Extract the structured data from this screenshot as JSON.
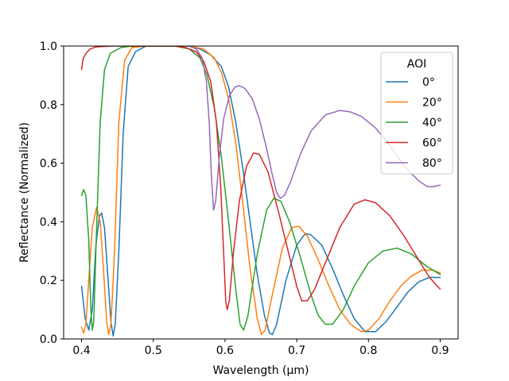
{
  "chart_data": {
    "type": "line",
    "title": "",
    "xlabel": "Wavelength (μm)",
    "ylabel": "Reflectance (Normalized)",
    "xlim": [
      0.375,
      0.925
    ],
    "ylim": [
      0.0,
      1.0
    ],
    "x_ticks": [
      "0.4",
      "0.5",
      "0.6",
      "0.7",
      "0.8",
      "0.9"
    ],
    "x_tick_values": [
      0.4,
      0.5,
      0.6,
      0.7,
      0.8,
      0.9
    ],
    "y_ticks": [
      "0.0",
      "0.2",
      "0.4",
      "0.6",
      "0.8",
      "1.0"
    ],
    "y_tick_values": [
      0.0,
      0.2,
      0.4,
      0.6,
      0.8,
      1.0
    ],
    "grid": false,
    "legend": {
      "title": "AOI",
      "placement": "top-right"
    },
    "series": [
      {
        "name": "0°",
        "color": "#1f77b4",
        "points": [
          [
            0.4,
            0.18
          ],
          [
            0.405,
            0.07
          ],
          [
            0.41,
            0.03
          ],
          [
            0.415,
            0.1
          ],
          [
            0.42,
            0.32
          ],
          [
            0.425,
            0.42
          ],
          [
            0.428,
            0.43
          ],
          [
            0.432,
            0.38
          ],
          [
            0.437,
            0.2
          ],
          [
            0.441,
            0.06
          ],
          [
            0.444,
            0.01
          ],
          [
            0.447,
            0.05
          ],
          [
            0.452,
            0.3
          ],
          [
            0.458,
            0.7
          ],
          [
            0.465,
            0.93
          ],
          [
            0.475,
            0.98
          ],
          [
            0.49,
            1.0
          ],
          [
            0.52,
            1.0
          ],
          [
            0.55,
            1.0
          ],
          [
            0.565,
            0.99
          ],
          [
            0.58,
            0.97
          ],
          [
            0.595,
            0.93
          ],
          [
            0.605,
            0.86
          ],
          [
            0.615,
            0.74
          ],
          [
            0.625,
            0.58
          ],
          [
            0.635,
            0.4
          ],
          [
            0.645,
            0.22
          ],
          [
            0.655,
            0.08
          ],
          [
            0.662,
            0.02
          ],
          [
            0.666,
            0.015
          ],
          [
            0.672,
            0.05
          ],
          [
            0.685,
            0.2
          ],
          [
            0.7,
            0.32
          ],
          [
            0.712,
            0.36
          ],
          [
            0.72,
            0.355
          ],
          [
            0.735,
            0.32
          ],
          [
            0.75,
            0.24
          ],
          [
            0.765,
            0.15
          ],
          [
            0.78,
            0.07
          ],
          [
            0.795,
            0.025
          ],
          [
            0.81,
            0.025
          ],
          [
            0.825,
            0.06
          ],
          [
            0.84,
            0.11
          ],
          [
            0.855,
            0.16
          ],
          [
            0.87,
            0.195
          ],
          [
            0.885,
            0.21
          ],
          [
            0.9,
            0.21
          ]
        ]
      },
      {
        "name": "20°",
        "color": "#ff7f0e",
        "points": [
          [
            0.4,
            0.04
          ],
          [
            0.403,
            0.02
          ],
          [
            0.406,
            0.05
          ],
          [
            0.41,
            0.2
          ],
          [
            0.415,
            0.38
          ],
          [
            0.421,
            0.45
          ],
          [
            0.426,
            0.4
          ],
          [
            0.431,
            0.22
          ],
          [
            0.435,
            0.06
          ],
          [
            0.438,
            0.015
          ],
          [
            0.441,
            0.05
          ],
          [
            0.446,
            0.3
          ],
          [
            0.452,
            0.74
          ],
          [
            0.46,
            0.95
          ],
          [
            0.47,
            0.995
          ],
          [
            0.49,
            1.0
          ],
          [
            0.52,
            1.0
          ],
          [
            0.55,
            1.0
          ],
          [
            0.57,
            0.99
          ],
          [
            0.585,
            0.96
          ],
          [
            0.595,
            0.91
          ],
          [
            0.605,
            0.82
          ],
          [
            0.615,
            0.67
          ],
          [
            0.625,
            0.46
          ],
          [
            0.635,
            0.24
          ],
          [
            0.645,
            0.07
          ],
          [
            0.651,
            0.015
          ],
          [
            0.656,
            0.03
          ],
          [
            0.665,
            0.14
          ],
          [
            0.68,
            0.31
          ],
          [
            0.693,
            0.38
          ],
          [
            0.703,
            0.385
          ],
          [
            0.715,
            0.35
          ],
          [
            0.73,
            0.27
          ],
          [
            0.745,
            0.18
          ],
          [
            0.76,
            0.1
          ],
          [
            0.775,
            0.05
          ],
          [
            0.79,
            0.025
          ],
          [
            0.8,
            0.03
          ],
          [
            0.815,
            0.07
          ],
          [
            0.83,
            0.13
          ],
          [
            0.845,
            0.18
          ],
          [
            0.86,
            0.215
          ],
          [
            0.875,
            0.235
          ],
          [
            0.89,
            0.235
          ],
          [
            0.9,
            0.225
          ]
        ]
      },
      {
        "name": "40°",
        "color": "#2ca02c",
        "points": [
          [
            0.4,
            0.49
          ],
          [
            0.403,
            0.51
          ],
          [
            0.406,
            0.49
          ],
          [
            0.41,
            0.34
          ],
          [
            0.413,
            0.1
          ],
          [
            0.415,
            0.03
          ],
          [
            0.417,
            0.06
          ],
          [
            0.421,
            0.38
          ],
          [
            0.426,
            0.74
          ],
          [
            0.432,
            0.92
          ],
          [
            0.44,
            0.975
          ],
          [
            0.455,
            0.995
          ],
          [
            0.47,
            1.0
          ],
          [
            0.5,
            1.0
          ],
          [
            0.53,
            1.0
          ],
          [
            0.55,
            0.99
          ],
          [
            0.565,
            0.96
          ],
          [
            0.575,
            0.9
          ],
          [
            0.585,
            0.79
          ],
          [
            0.595,
            0.62
          ],
          [
            0.605,
            0.4
          ],
          [
            0.615,
            0.17
          ],
          [
            0.621,
            0.05
          ],
          [
            0.626,
            0.03
          ],
          [
            0.632,
            0.08
          ],
          [
            0.645,
            0.29
          ],
          [
            0.658,
            0.44
          ],
          [
            0.668,
            0.48
          ],
          [
            0.678,
            0.47
          ],
          [
            0.69,
            0.4
          ],
          [
            0.705,
            0.28
          ],
          [
            0.72,
            0.15
          ],
          [
            0.73,
            0.08
          ],
          [
            0.74,
            0.05
          ],
          [
            0.75,
            0.05
          ],
          [
            0.765,
            0.1
          ],
          [
            0.78,
            0.18
          ],
          [
            0.8,
            0.26
          ],
          [
            0.82,
            0.3
          ],
          [
            0.84,
            0.31
          ],
          [
            0.86,
            0.29
          ],
          [
            0.88,
            0.25
          ],
          [
            0.9,
            0.22
          ]
        ]
      },
      {
        "name": "60°",
        "color": "#d62728",
        "points": [
          [
            0.4,
            0.92
          ],
          [
            0.402,
            0.955
          ],
          [
            0.406,
            0.975
          ],
          [
            0.412,
            0.99
          ],
          [
            0.42,
            0.997
          ],
          [
            0.44,
            1.0
          ],
          [
            0.47,
            1.0
          ],
          [
            0.5,
            1.0
          ],
          [
            0.53,
            1.0
          ],
          [
            0.545,
            0.995
          ],
          [
            0.56,
            0.98
          ],
          [
            0.57,
            0.95
          ],
          [
            0.58,
            0.88
          ],
          [
            0.588,
            0.74
          ],
          [
            0.594,
            0.52
          ],
          [
            0.598,
            0.3
          ],
          [
            0.601,
            0.13
          ],
          [
            0.603,
            0.1
          ],
          [
            0.606,
            0.13
          ],
          [
            0.612,
            0.3
          ],
          [
            0.62,
            0.47
          ],
          [
            0.63,
            0.59
          ],
          [
            0.64,
            0.635
          ],
          [
            0.648,
            0.63
          ],
          [
            0.66,
            0.57
          ],
          [
            0.675,
            0.43
          ],
          [
            0.69,
            0.28
          ],
          [
            0.7,
            0.18
          ],
          [
            0.707,
            0.13
          ],
          [
            0.715,
            0.13
          ],
          [
            0.725,
            0.17
          ],
          [
            0.74,
            0.26
          ],
          [
            0.76,
            0.38
          ],
          [
            0.78,
            0.46
          ],
          [
            0.795,
            0.475
          ],
          [
            0.81,
            0.465
          ],
          [
            0.83,
            0.42
          ],
          [
            0.85,
            0.35
          ],
          [
            0.87,
            0.27
          ],
          [
            0.885,
            0.21
          ],
          [
            0.9,
            0.17
          ]
        ]
      },
      {
        "name": "80°",
        "color": "#9467bd",
        "points": [
          [
            0.55,
            1.0
          ],
          [
            0.56,
            0.99
          ],
          [
            0.568,
            0.96
          ],
          [
            0.574,
            0.88
          ],
          [
            0.578,
            0.74
          ],
          [
            0.581,
            0.56
          ],
          [
            0.584,
            0.44
          ],
          [
            0.587,
            0.47
          ],
          [
            0.592,
            0.62
          ],
          [
            0.598,
            0.75
          ],
          [
            0.606,
            0.83
          ],
          [
            0.614,
            0.86
          ],
          [
            0.62,
            0.865
          ],
          [
            0.628,
            0.855
          ],
          [
            0.638,
            0.82
          ],
          [
            0.648,
            0.75
          ],
          [
            0.658,
            0.65
          ],
          [
            0.666,
            0.56
          ],
          [
            0.672,
            0.5
          ],
          [
            0.677,
            0.48
          ],
          [
            0.683,
            0.49
          ],
          [
            0.692,
            0.54
          ],
          [
            0.705,
            0.63
          ],
          [
            0.72,
            0.71
          ],
          [
            0.74,
            0.765
          ],
          [
            0.76,
            0.78
          ],
          [
            0.775,
            0.775
          ],
          [
            0.79,
            0.76
          ],
          [
            0.81,
            0.72
          ],
          [
            0.83,
            0.66
          ],
          [
            0.85,
            0.59
          ],
          [
            0.87,
            0.54
          ],
          [
            0.882,
            0.52
          ],
          [
            0.89,
            0.52
          ],
          [
            0.9,
            0.525
          ]
        ]
      }
    ]
  }
}
